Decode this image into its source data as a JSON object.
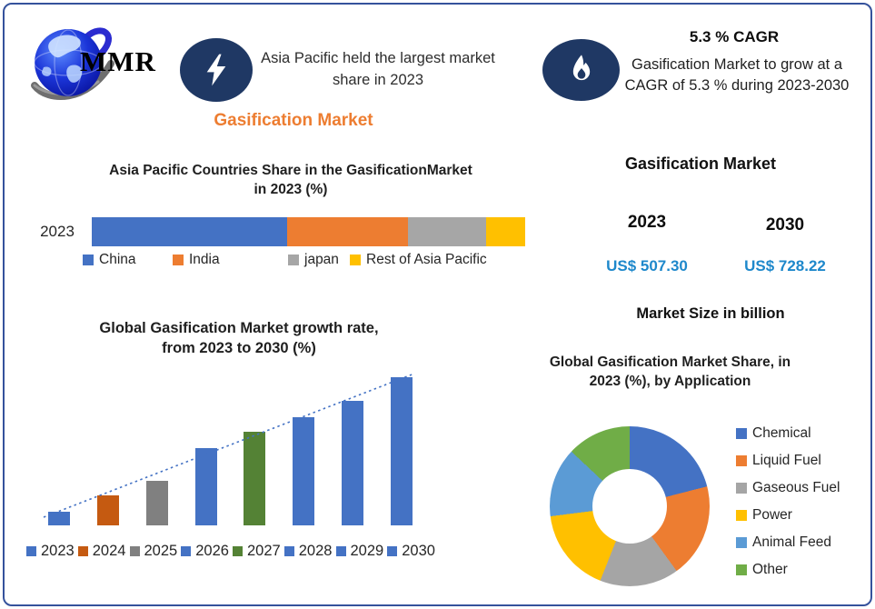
{
  "frame": {
    "border_color": "#35529C",
    "background": "#FFFFFF"
  },
  "logo": {
    "text": "MMR",
    "text_color": "#2B2BD0"
  },
  "header": {
    "icon_bg": "#1F3864",
    "highlight_text": "Asia Pacific held the largest market\nshare in 2023",
    "brand_title": "Gasification Market",
    "brand_color": "#ED7D31",
    "cagr_headline": "5.3 % CAGR",
    "cagr_body": "Gasification Market to grow at a\nCAGR of 5.3 % during 2023-2030"
  },
  "market_panel": {
    "title": "Gasification Market",
    "periods": [
      {
        "year": "2023",
        "value": "US$ 507.30"
      },
      {
        "year": "2030",
        "value": "US$ 728.22"
      }
    ],
    "value_color": "#1E88CB",
    "caption": "Market Size in billion"
  },
  "chart_data": [
    {
      "id": "country_share",
      "type": "bar",
      "subtype": "stacked-horizontal",
      "title": "Asia Pacific Countries Share in the  GasificationMarket\nin 2023 (%)",
      "row_label": "2023",
      "categories": [
        "China",
        "India",
        "japan",
        "Rest of Asia Pacific"
      ],
      "values": [
        45,
        28,
        18,
        9
      ],
      "colors": [
        "#4472C4",
        "#ED7D31",
        "#A6A6A6",
        "#FFC000"
      ],
      "legend_position": "bottom",
      "xlabel": "",
      "ylabel": ""
    },
    {
      "id": "growth_rate",
      "type": "bar",
      "title": "Global Gasification Market growth rate,\nfrom 2023 to 2030 (%)",
      "categories": [
        "2023",
        "2024",
        "2025",
        "2026",
        "2027",
        "2028",
        "2029",
        "2030"
      ],
      "values": [
        0.9,
        2.0,
        3.0,
        5.2,
        6.3,
        7.3,
        8.4,
        10.0
      ],
      "colors": [
        "#4472C4",
        "#C55A11",
        "#808080",
        "#4472C4",
        "#548235",
        "#4472C4",
        "#4472C4",
        "#4472C4"
      ],
      "trendline": true,
      "trendline_style": "dotted",
      "trendline_color": "#4472C4",
      "legend_position": "bottom",
      "grid": false,
      "ylim": [
        0,
        10.4
      ],
      "xlabel": "",
      "ylabel": ""
    },
    {
      "id": "application_share",
      "type": "pie",
      "subtype": "donut",
      "title": "Global Gasification Market Share, in\n2023 (%), by Application",
      "categories": [
        "Chemical",
        "Liquid Fuel",
        "Gaseous Fuel",
        "Power",
        "Animal Feed",
        "Other"
      ],
      "values": [
        21,
        19,
        16,
        17,
        14,
        13
      ],
      "colors": [
        "#4472C4",
        "#ED7D31",
        "#A5A5A5",
        "#FFC000",
        "#5B9BD5",
        "#70AD47"
      ],
      "start_angle_deg": 0,
      "legend_position": "right"
    }
  ]
}
